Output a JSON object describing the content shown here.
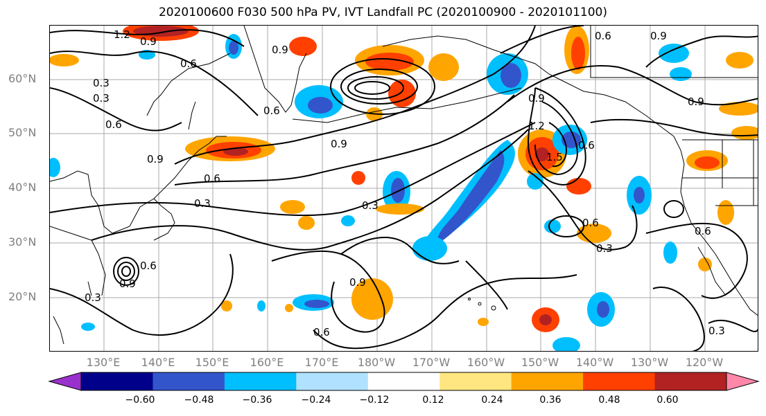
{
  "title": "2020100600 F030 500 hPa PV, IVT Landfall PC (2020100900 - 2020101100)",
  "lat_labels": [
    "60°N",
    "50°N",
    "40°N",
    "30°N",
    "20°N"
  ],
  "lon_labels": [
    "130°E",
    "140°E",
    "150°E",
    "160°E",
    "170°E",
    "180°W",
    "170°W",
    "160°W",
    "150°W",
    "140°W",
    "130°W",
    "120°W"
  ],
  "contour_labels": [
    "1.2",
    "0.9",
    "0.6",
    "0.3",
    "0.9",
    "0.9",
    "0.6",
    "0.9",
    "0.6",
    "0.6",
    "0.9",
    "0.6",
    "0.3",
    "0.3",
    "0.9",
    "0.3",
    "0.9",
    "1.2",
    "1.5",
    "0.6",
    "0.6",
    "0.3",
    "0.6",
    "0.6",
    "0.3",
    "0.6",
    "0.9",
    "0.3",
    "0.9"
  ],
  "colorbar": {
    "tick_labels": [
      "−0.60",
      "−0.48",
      "−0.36",
      "−0.24",
      "−0.12",
      "0.12",
      "0.24",
      "0.36",
      "0.48",
      "0.60"
    ],
    "colors": [
      "#9932cc",
      "#00008b",
      "#3355cc",
      "#00bfff",
      "#b0e2ff",
      "#ffffff",
      "#ffe680",
      "#ffa500",
      "#ff4000",
      "#b22222",
      "#ff88aa"
    ]
  },
  "colors": {
    "contour": "#000000",
    "coast": "#000000",
    "grid": "#aaaaaa"
  }
}
